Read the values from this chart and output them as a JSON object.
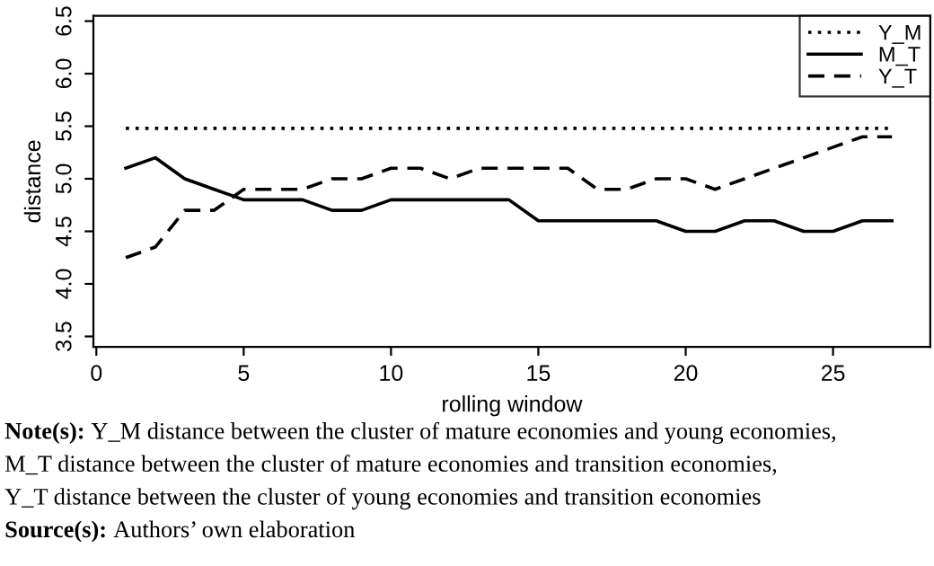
{
  "chart_data": {
    "type": "line",
    "xlabel": "rolling window",
    "ylabel": "distance",
    "x": [
      1,
      2,
      3,
      4,
      5,
      6,
      7,
      8,
      9,
      10,
      11,
      12,
      13,
      14,
      15,
      16,
      17,
      18,
      19,
      20,
      21,
      22,
      23,
      24,
      25,
      26,
      27
    ],
    "series": [
      {
        "name": "Y_M",
        "color": "#000000",
        "line_style": "dotted",
        "values": [
          5.48,
          5.48,
          5.48,
          5.48,
          5.48,
          5.48,
          5.48,
          5.48,
          5.48,
          5.48,
          5.48,
          5.48,
          5.48,
          5.48,
          5.48,
          5.48,
          5.48,
          5.48,
          5.48,
          5.48,
          5.48,
          5.48,
          5.48,
          5.48,
          5.48,
          5.48,
          5.48
        ]
      },
      {
        "name": "M_T",
        "color": "#000000",
        "line_style": "solid",
        "values": [
          5.1,
          5.2,
          5.0,
          4.9,
          4.8,
          4.8,
          4.8,
          4.7,
          4.7,
          4.8,
          4.8,
          4.8,
          4.8,
          4.8,
          4.6,
          4.6,
          4.6,
          4.6,
          4.6,
          4.5,
          4.5,
          4.6,
          4.6,
          4.5,
          4.5,
          4.6,
          4.6
        ]
      },
      {
        "name": "Y_T",
        "color": "#000000",
        "line_style": "dashed",
        "values": [
          4.25,
          4.35,
          4.7,
          4.7,
          4.9,
          4.9,
          4.9,
          5.0,
          5.0,
          5.1,
          5.1,
          5.0,
          5.1,
          5.1,
          5.1,
          5.1,
          4.9,
          4.9,
          5.0,
          5.0,
          4.9,
          5.0,
          5.1,
          5.2,
          5.3,
          5.4,
          5.4
        ]
      }
    ],
    "xlim": [
      -0.1,
      28.3
    ],
    "ylim": [
      3.4,
      6.55
    ],
    "xticks": [
      0,
      5,
      10,
      15,
      20,
      25
    ],
    "yticks": [
      {
        "value": 3.5,
        "label": "3.5"
      },
      {
        "value": 4.0,
        "label": "4.0"
      },
      {
        "value": 4.5,
        "label": "4.5"
      },
      {
        "value": 5.0,
        "label": "5.0"
      },
      {
        "value": 5.5,
        "label": "5.5"
      },
      {
        "value": 6.0,
        "label": "6.0"
      },
      {
        "value": 6.5,
        "label": "6.5"
      }
    ],
    "grid": false,
    "legend": "top right",
    "marker": "none",
    "annotations": [
      "Note(s): Y_M distance between the cluster of mature economies and young economies,",
      "M_T distance between the cluster of mature economies and transition economies,",
      "Y_T distance between the cluster of young economies and transition economies",
      "Source(s): Authors’ own elaboration"
    ]
  }
}
